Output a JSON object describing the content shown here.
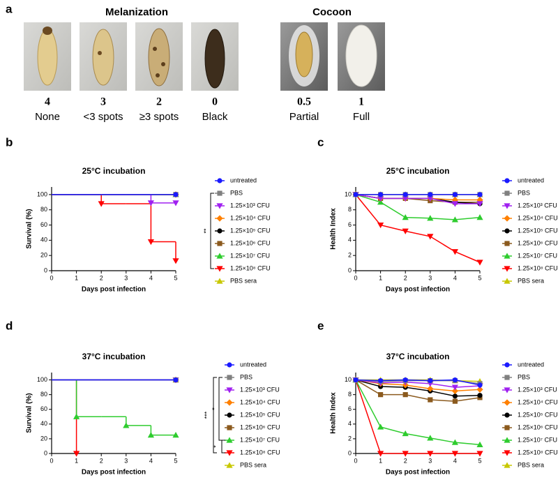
{
  "panel_a": {
    "label": "a",
    "groups": [
      {
        "title": "Melanization"
      },
      {
        "title": "Cocoon"
      }
    ],
    "items": [
      {
        "score": 4,
        "label": "None"
      },
      {
        "score": 3,
        "label": "<3 spots"
      },
      {
        "score": 2,
        "label": "≥3 spots"
      },
      {
        "score": 0,
        "label": "Black"
      },
      {
        "score": 0.5,
        "label": "Partial"
      },
      {
        "score": 1,
        "label": "Full"
      }
    ]
  },
  "chart_data": [
    {
      "type": "line",
      "step": true,
      "panel_label": "b",
      "title": "25°C incubation",
      "x_label": "Days post infection",
      "y_label": "Survival (%)",
      "x": [
        0,
        1,
        2,
        3,
        4,
        5
      ],
      "xlim": [
        0,
        5
      ],
      "xticks": [
        0,
        1,
        2,
        3,
        4,
        5
      ],
      "ylim": [
        0,
        110
      ],
      "yticks": [
        0,
        20,
        40,
        60,
        80,
        100
      ],
      "annotations": [
        "**"
      ],
      "series": [
        {
          "name": "untreated",
          "color": "#1a1aff",
          "marker": "circle",
          "values": [
            100,
            100,
            100,
            100,
            100,
            100
          ]
        },
        {
          "name": "PBS",
          "color": "#808080",
          "marker": "square",
          "values": [
            100,
            100,
            100,
            100,
            100,
            100
          ]
        },
        {
          "name": "1.25×10³ CFU",
          "color": "#a020f0",
          "marker": "triangle-down",
          "values": [
            100,
            100,
            100,
            100,
            89,
            89
          ]
        },
        {
          "name": "1.25×10⁴ CFU",
          "color": "#ff8000",
          "marker": "diamond",
          "values": [
            100,
            100,
            100,
            100,
            100,
            100
          ]
        },
        {
          "name": "1.25×10⁵ CFU",
          "color": "#000000",
          "marker": "circle",
          "values": [
            100,
            100,
            100,
            100,
            100,
            100
          ]
        },
        {
          "name": "1.25×10⁶ CFU",
          "color": "#8b5a1e",
          "marker": "square",
          "values": [
            100,
            100,
            100,
            100,
            100,
            100
          ]
        },
        {
          "name": "1.25×10⁷ CFU",
          "color": "#2ecc2e",
          "marker": "triangle-up",
          "values": [
            100,
            100,
            100,
            100,
            100,
            100
          ]
        },
        {
          "name": "1.25×10⁸ CFU",
          "color": "#ff0000",
          "marker": "triangle-down",
          "values": [
            100,
            100,
            88,
            88,
            38,
            13
          ]
        },
        {
          "name": "PBS sera",
          "color": "#c8c800",
          "marker": "triangle-up",
          "values": [
            100,
            100,
            100,
            100,
            100,
            100
          ]
        }
      ]
    },
    {
      "type": "line",
      "step": false,
      "panel_label": "c",
      "title": "25°C incubation",
      "x_label": "Days post infection",
      "y_label": "Health Index",
      "x": [
        0,
        1,
        2,
        3,
        4,
        5
      ],
      "xlim": [
        0,
        5
      ],
      "xticks": [
        0,
        1,
        2,
        3,
        4,
        5
      ],
      "ylim": [
        0,
        11
      ],
      "yticks": [
        0,
        2,
        4,
        6,
        8,
        10
      ],
      "annotations": [],
      "series": [
        {
          "name": "untreated",
          "color": "#1a1aff",
          "marker": "circle",
          "values": [
            10,
            10,
            10,
            10,
            10,
            10
          ]
        },
        {
          "name": "PBS",
          "color": "#808080",
          "marker": "square",
          "values": [
            10,
            10,
            10,
            10,
            10,
            10
          ]
        },
        {
          "name": "1.25×10³ CFU",
          "color": "#a020f0",
          "marker": "triangle-down",
          "values": [
            10,
            9.5,
            9.5,
            9.5,
            8.8,
            8.8
          ]
        },
        {
          "name": "1.25×10⁴ CFU",
          "color": "#ff8000",
          "marker": "diamond",
          "values": [
            10,
            9.5,
            9.5,
            9.5,
            9.3,
            9.3
          ]
        },
        {
          "name": "1.25×10⁵ CFU",
          "color": "#000000",
          "marker": "circle",
          "values": [
            10,
            9.5,
            9.5,
            9.5,
            9,
            8.8
          ]
        },
        {
          "name": "1.25×10⁶ CFU",
          "color": "#8b5a1e",
          "marker": "square",
          "values": [
            10,
            9.5,
            9.5,
            9.2,
            9,
            9
          ]
        },
        {
          "name": "1.25×10⁷ CFU",
          "color": "#2ecc2e",
          "marker": "triangle-up",
          "values": [
            10,
            9,
            7,
            6.9,
            6.7,
            7
          ]
        },
        {
          "name": "1.25×10⁸ CFU",
          "color": "#ff0000",
          "marker": "triangle-down",
          "values": [
            10,
            6,
            5.2,
            4.5,
            2.5,
            1.1
          ]
        },
        {
          "name": "PBS sera",
          "color": "#c8c800",
          "marker": "triangle-up",
          "values": [
            10,
            10,
            10,
            10,
            10,
            10
          ]
        }
      ]
    },
    {
      "type": "line",
      "step": true,
      "panel_label": "d",
      "title": "37°C  incubation",
      "x_label": "Days post infection",
      "y_label": "Survival (%)",
      "x": [
        0,
        1,
        2,
        3,
        4,
        5
      ],
      "xlim": [
        0,
        5
      ],
      "xticks": [
        0,
        1,
        2,
        3,
        4,
        5
      ],
      "ylim": [
        0,
        110
      ],
      "yticks": [
        0,
        20,
        40,
        60,
        80,
        100
      ],
      "annotations": [
        "***",
        "*",
        "*"
      ],
      "series": [
        {
          "name": "untreated",
          "color": "#1a1aff",
          "marker": "circle",
          "values": [
            100,
            100,
            100,
            100,
            100,
            100
          ]
        },
        {
          "name": "PBS",
          "color": "#808080",
          "marker": "square",
          "values": [
            100,
            100,
            100,
            100,
            100,
            100
          ]
        },
        {
          "name": "1.25×10³ CFU",
          "color": "#a020f0",
          "marker": "triangle-down",
          "values": [
            100,
            100,
            100,
            100,
            100,
            100
          ]
        },
        {
          "name": "1.25×10⁴ CFU",
          "color": "#ff8000",
          "marker": "diamond",
          "values": [
            100,
            100,
            100,
            100,
            100,
            100
          ]
        },
        {
          "name": "1.25×10⁵ CFU",
          "color": "#000000",
          "marker": "circle",
          "values": [
            100,
            100,
            100,
            100,
            100,
            100
          ]
        },
        {
          "name": "1.25×10⁶ CFU",
          "color": "#8b5a1e",
          "marker": "square",
          "values": [
            100,
            100,
            100,
            100,
            100,
            100
          ]
        },
        {
          "name": "1.25×10⁷ CFU",
          "color": "#2ecc2e",
          "marker": "triangle-up",
          "values": [
            100,
            50,
            50,
            38,
            25,
            25
          ]
        },
        {
          "name": "1.25×10⁸ CFU",
          "color": "#ff0000",
          "marker": "triangle-down",
          "values": [
            100,
            0,
            null,
            null,
            null,
            null
          ]
        },
        {
          "name": "PBS sera",
          "color": "#c8c800",
          "marker": "triangle-up",
          "values": [
            100,
            100,
            100,
            100,
            100,
            100
          ]
        }
      ]
    },
    {
      "type": "line",
      "step": false,
      "panel_label": "e",
      "title": "37°C  incubation",
      "x_label": "Days post infection",
      "y_label": "Health Index",
      "x": [
        0,
        1,
        2,
        3,
        4,
        5
      ],
      "xlim": [
        0,
        5
      ],
      "xticks": [
        0,
        1,
        2,
        3,
        4,
        5
      ],
      "ylim": [
        0,
        11
      ],
      "yticks": [
        0,
        2,
        4,
        6,
        8,
        10
      ],
      "annotations": [],
      "series": [
        {
          "name": "untreated",
          "color": "#1a1aff",
          "marker": "circle",
          "values": [
            10,
            9.9,
            10,
            9.9,
            10,
            9.3
          ]
        },
        {
          "name": "PBS",
          "color": "#808080",
          "marker": "square",
          "values": [
            10,
            9.8,
            9.9,
            9.9,
            9.9,
            9.5
          ]
        },
        {
          "name": "1.25×10³ CFU",
          "color": "#a020f0",
          "marker": "triangle-down",
          "values": [
            10,
            9.6,
            9.7,
            9.5,
            9,
            9.2
          ]
        },
        {
          "name": "1.25×10⁴ CFU",
          "color": "#ff8000",
          "marker": "diamond",
          "values": [
            10,
            9.5,
            9.3,
            8.8,
            8.5,
            8.7
          ]
        },
        {
          "name": "1.25×10⁵ CFU",
          "color": "#000000",
          "marker": "circle",
          "values": [
            10,
            9.1,
            9,
            8.5,
            7.8,
            7.9
          ]
        },
        {
          "name": "1.25×10⁶ CFU",
          "color": "#8b5a1e",
          "marker": "square",
          "values": [
            10,
            8,
            8,
            7.3,
            7.1,
            7.6
          ]
        },
        {
          "name": "1.25×10⁷ CFU",
          "color": "#2ecc2e",
          "marker": "triangle-up",
          "values": [
            10,
            3.6,
            2.7,
            2.1,
            1.5,
            1.2
          ]
        },
        {
          "name": "1.25×10⁸ CFU",
          "color": "#ff0000",
          "marker": "triangle-down",
          "values": [
            10,
            0,
            0,
            0,
            0,
            0
          ]
        },
        {
          "name": "PBS sera",
          "color": "#c8c800",
          "marker": "triangle-up",
          "values": [
            10,
            10,
            10,
            10,
            9.9,
            9.8
          ]
        }
      ]
    }
  ]
}
